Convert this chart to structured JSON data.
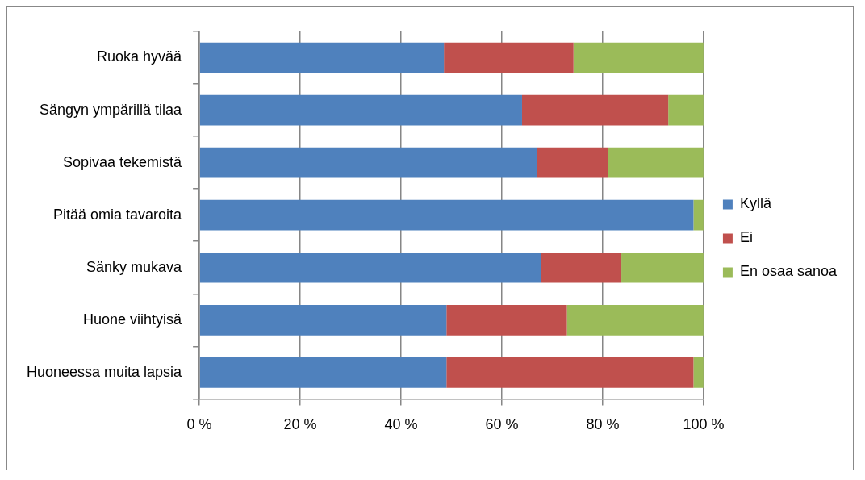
{
  "chart_data": {
    "type": "bar",
    "orientation": "horizontal",
    "stacked": true,
    "categories": [
      "Ruoka hyvää",
      "Sängyn ympärillä tilaa",
      "Sopivaa tekemistä",
      "Pitää omia tavaroita",
      "Sänky mukava",
      "Huone viihtyisä",
      "Huoneessa muita lapsia"
    ],
    "series": [
      {
        "name": "Kyllä",
        "color": "#4f81bd",
        "values": [
          48.5,
          64,
          67,
          98,
          67.7,
          49,
          49
        ]
      },
      {
        "name": "Ei",
        "color": "#c0504d",
        "values": [
          25.7,
          29,
          14,
          0,
          16,
          23.9,
          49
        ]
      },
      {
        "name": "En osaa sanoa",
        "color": "#9bbb59",
        "values": [
          25.8,
          7,
          19,
          2,
          16.3,
          27.1,
          2
        ]
      }
    ],
    "xlim": [
      0,
      100
    ],
    "xticks": [
      {
        "value": 0,
        "label": "0 %"
      },
      {
        "value": 20,
        "label": "20 %"
      },
      {
        "value": 40,
        "label": "40 %"
      },
      {
        "value": 60,
        "label": "60 %"
      },
      {
        "value": 80,
        "label": "80 %"
      },
      {
        "value": 100,
        "label": "100 %"
      }
    ],
    "grid": "x",
    "legend": "right"
  }
}
